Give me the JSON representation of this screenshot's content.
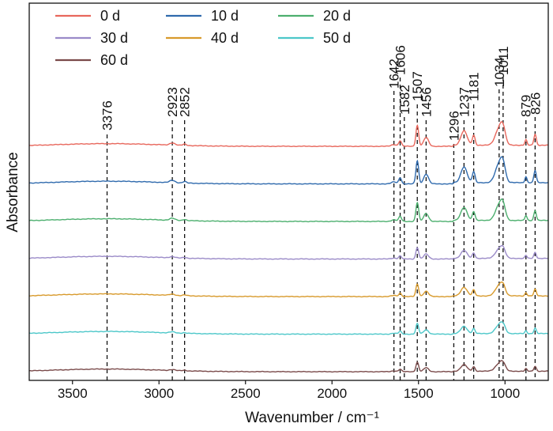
{
  "chart_data": {
    "type": "line",
    "xlabel": "Wavenumber / cm⁻¹",
    "ylabel": "Absorbance",
    "xlim": [
      3750,
      750
    ],
    "x_reversed": true,
    "y_ticks_visible": false,
    "x_ticks": [
      3500,
      3000,
      2500,
      2000,
      1500,
      1000
    ],
    "x_tick_labels": [
      "3500",
      "3000",
      "2500",
      "2000",
      "1500",
      "1000"
    ],
    "stacked_offset_series": true,
    "grid": false,
    "legend": {
      "placement": "top-left",
      "columns": 3
    },
    "series": [
      {
        "name": "0 d",
        "color": "#e8675c",
        "intensity": 1.0
      },
      {
        "name": "10 d",
        "color": "#2f6aad",
        "intensity": 1.1
      },
      {
        "name": "20 d",
        "color": "#4caf6e",
        "intensity": 0.9
      },
      {
        "name": "30 d",
        "color": "#9a8ac8",
        "intensity": 0.55
      },
      {
        "name": "40 d",
        "color": "#d89a2c",
        "intensity": 0.6
      },
      {
        "name": "50 d",
        "color": "#4cc7c9",
        "intensity": 0.5
      },
      {
        "name": "60 d",
        "color": "#7a4a4a",
        "intensity": 0.45
      }
    ],
    "peaks": [
      {
        "x": 3376,
        "label": "3376",
        "line_x": 3300
      },
      {
        "x": 2923,
        "label": "2923"
      },
      {
        "x": 2852,
        "label": "2852"
      },
      {
        "x": 1642,
        "label": "1642"
      },
      {
        "x": 1606,
        "label": "1606"
      },
      {
        "x": 1582,
        "label": "1582"
      },
      {
        "x": 1507,
        "label": "1507"
      },
      {
        "x": 1456,
        "label": "1456"
      },
      {
        "x": 1296,
        "label": "1296"
      },
      {
        "x": 1237,
        "label": "1237"
      },
      {
        "x": 1181,
        "label": "1181"
      },
      {
        "x": 1034,
        "label": "1034"
      },
      {
        "x": 1011,
        "label": "1011"
      },
      {
        "x": 879,
        "label": "879"
      },
      {
        "x": 826,
        "label": "826"
      }
    ],
    "spectral_features": [
      {
        "center": 3300,
        "width": 300,
        "height": 0.12
      },
      {
        "center": 2923,
        "width": 15,
        "height": 0.1
      },
      {
        "center": 2852,
        "width": 10,
        "height": 0.06
      },
      {
        "center": 1642,
        "width": 15,
        "height": 0.08
      },
      {
        "center": 1606,
        "width": 8,
        "height": 0.25
      },
      {
        "center": 1507,
        "width": 8,
        "height": 0.95
      },
      {
        "center": 1456,
        "width": 14,
        "height": 0.4
      },
      {
        "center": 1237,
        "width": 18,
        "height": 0.65
      },
      {
        "center": 1181,
        "width": 8,
        "height": 0.45
      },
      {
        "center": 1034,
        "width": 22,
        "height": 0.75
      },
      {
        "center": 1011,
        "width": 14,
        "height": 0.55
      },
      {
        "center": 879,
        "width": 6,
        "height": 0.25
      },
      {
        "center": 826,
        "width": 7,
        "height": 0.5
      }
    ]
  }
}
